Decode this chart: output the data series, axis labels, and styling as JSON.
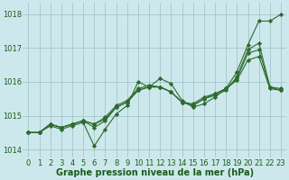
{
  "lines": [
    {
      "x": [
        0,
        1,
        2,
        3,
        4,
        5,
        6,
        7,
        8,
        9,
        10,
        11,
        12,
        13,
        14,
        15,
        16,
        17,
        18,
        19,
        20,
        21,
        22,
        23
      ],
      "y": [
        1014.5,
        1014.5,
        1014.7,
        1014.6,
        1014.7,
        1014.8,
        1014.1,
        1014.6,
        1015.05,
        1015.3,
        1016.0,
        1015.85,
        1016.1,
        1015.95,
        1015.45,
        1015.25,
        1015.35,
        1015.55,
        1015.8,
        1016.3,
        1017.1,
        1017.8,
        1017.8,
        1018.0
      ]
    },
    {
      "x": [
        0,
        1,
        2,
        3,
        4,
        5,
        6,
        7,
        8,
        9,
        10,
        11,
        12,
        13,
        14,
        15,
        16,
        17,
        18,
        19,
        20,
        21,
        22,
        23
      ],
      "y": [
        1014.5,
        1014.5,
        1014.75,
        1014.65,
        1014.75,
        1014.85,
        1014.65,
        1014.85,
        1015.25,
        1015.4,
        1015.75,
        1015.85,
        1015.85,
        1015.7,
        1015.4,
        1015.3,
        1015.5,
        1015.6,
        1015.75,
        1016.15,
        1016.95,
        1017.15,
        1015.85,
        1015.8
      ]
    },
    {
      "x": [
        0,
        1,
        2,
        3,
        4,
        5,
        6,
        7,
        8,
        9,
        10,
        11,
        12,
        13,
        14,
        15,
        16,
        17,
        18,
        19,
        20,
        21,
        22,
        23
      ],
      "y": [
        1014.5,
        1014.5,
        1014.75,
        1014.65,
        1014.75,
        1014.85,
        1014.75,
        1014.9,
        1015.25,
        1015.4,
        1015.75,
        1015.85,
        1015.85,
        1015.7,
        1015.4,
        1015.3,
        1015.5,
        1015.65,
        1015.8,
        1016.1,
        1016.85,
        1016.95,
        1015.85,
        1015.75
      ]
    },
    {
      "x": [
        0,
        1,
        2,
        3,
        4,
        5,
        6,
        7,
        8,
        9,
        10,
        11,
        12,
        13,
        14,
        15,
        16,
        17,
        18,
        19,
        20,
        21,
        22,
        23
      ],
      "y": [
        1014.5,
        1014.5,
        1014.75,
        1014.65,
        1014.75,
        1014.85,
        1014.75,
        1014.95,
        1015.3,
        1015.45,
        1015.8,
        1015.9,
        1015.85,
        1015.7,
        1015.4,
        1015.35,
        1015.55,
        1015.65,
        1015.8,
        1016.05,
        1016.65,
        1016.75,
        1015.8,
        1015.75
      ]
    }
  ],
  "line_color": "#2d6a2d",
  "marker": "D",
  "markersize": 2.2,
  "linewidth": 0.8,
  "bg_color": "#cde8ec",
  "grid_color": "#9abfc4",
  "xlabel": "Graphe pression niveau de la mer (hPa)",
  "xlabel_color": "#1a5c1a",
  "xlabel_fontsize": 7,
  "xtick_labels": [
    "0",
    "1",
    "2",
    "3",
    "4",
    "5",
    "6",
    "7",
    "8",
    "9",
    "10",
    "11",
    "12",
    "13",
    "14",
    "15",
    "16",
    "17",
    "18",
    "19",
    "20",
    "21",
    "22",
    "23"
  ],
  "yticks": [
    1014,
    1015,
    1016,
    1017,
    1018
  ],
  "ylim": [
    1013.75,
    1018.35
  ],
  "xlim": [
    -0.5,
    23.5
  ],
  "tick_color": "#1a5c1a",
  "tick_fontsize": 6
}
